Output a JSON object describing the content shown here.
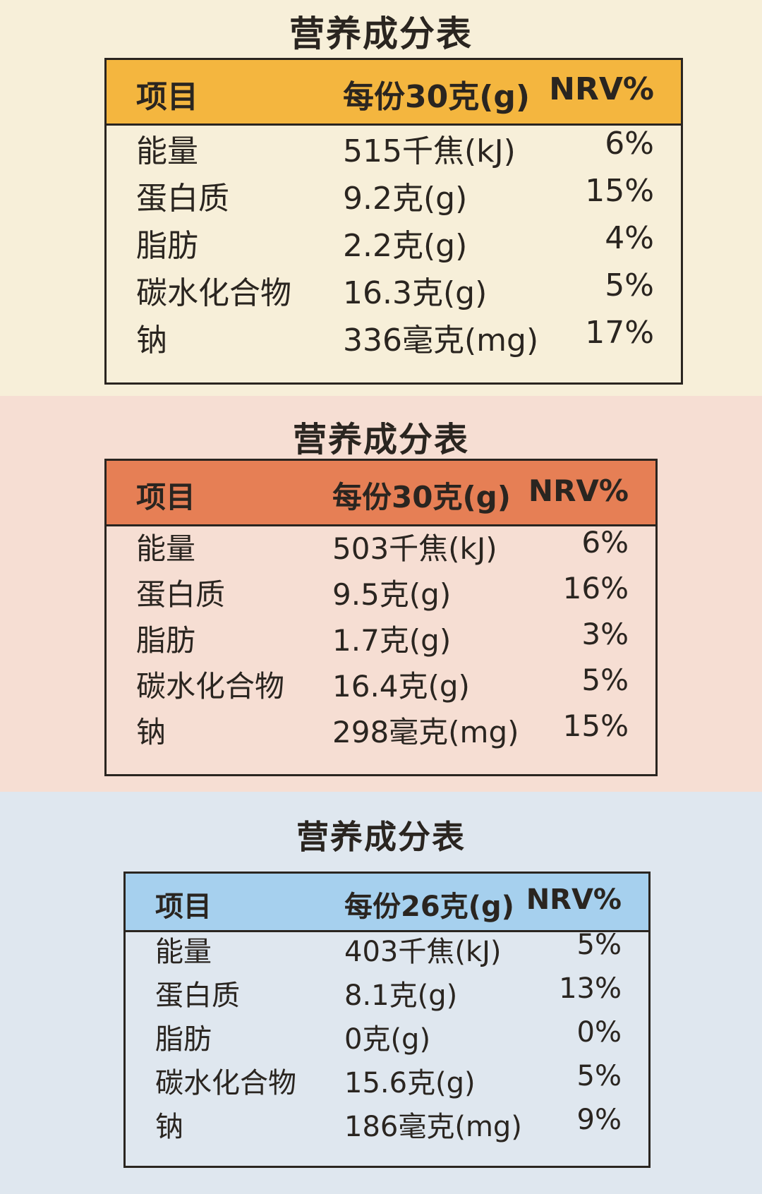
{
  "panels": [
    {
      "title": "营养成分表",
      "header": [
        "项目",
        "每份30克(g)",
        "NRV%"
      ],
      "rows": [
        [
          "能量",
          "515千焦(kJ)",
          "6%"
        ],
        [
          "蛋白质",
          "9.2克(g)",
          "15%"
        ],
        [
          "脂肪",
          "2.2克(g)",
          "4%"
        ],
        [
          "碳水化合物",
          "16.3克(g)",
          "5%"
        ],
        [
          "钠",
          "336毫克(mg)",
          "17%"
        ]
      ]
    },
    {
      "title": "营养成分表",
      "header": [
        "项目",
        "每份30克(g)",
        "NRV%"
      ],
      "rows": [
        [
          "能量",
          "503千焦(kJ)",
          "6%"
        ],
        [
          "蛋白质",
          "9.5克(g)",
          "16%"
        ],
        [
          "脂肪",
          "1.7克(g)",
          "3%"
        ],
        [
          "碳水化合物",
          "16.4克(g)",
          "5%"
        ],
        [
          "钠",
          "298毫克(mg)",
          "15%"
        ]
      ]
    },
    {
      "title": "营养成分表",
      "header": [
        "项目",
        "每份26克(g)",
        "NRV%"
      ],
      "rows": [
        [
          "能量",
          "403千焦(kJ)",
          "5%"
        ],
        [
          "蛋白质",
          "8.1克(g)",
          "13%"
        ],
        [
          "脂肪",
          "0克(g)",
          "0%"
        ],
        [
          "碳水化合物",
          "15.6克(g)",
          "5%"
        ],
        [
          "钠",
          "186毫克(mg)",
          "9%"
        ]
      ]
    }
  ]
}
